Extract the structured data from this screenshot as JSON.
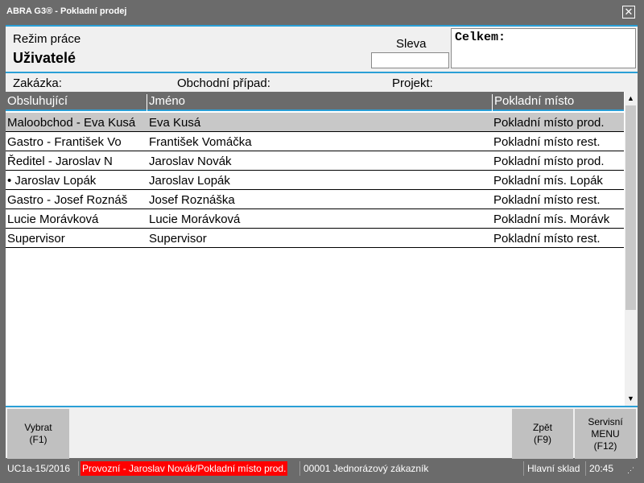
{
  "window": {
    "title": "ABRA G3® - Pokladní prodej",
    "close_icon": "close-icon"
  },
  "top": {
    "mode_label": "Režim práce",
    "mode_value": "Uživatelé",
    "sleva_label": "Sleva",
    "sleva_value": "",
    "celkem_label": "Celkem:"
  },
  "context": {
    "zakazka": "Zakázka:",
    "obchodni_pripad": "Obchodní případ:",
    "projekt": "Projekt:"
  },
  "table": {
    "columns": [
      "Obsluhující",
      "Jméno",
      "Pokladní místo"
    ],
    "rows": [
      [
        "Maloobchod - Eva Kusá",
        "Eva Kusá",
        "Pokladní místo prod."
      ],
      [
        "Gastro - František Vo",
        "František Vomáčka",
        "Pokladní místo rest."
      ],
      [
        "Ředitel - Jaroslav N",
        "Jaroslav Novák",
        "Pokladní místo prod."
      ],
      [
        "• Jaroslav Lopák",
        "Jaroslav Lopák",
        "Pokladní mís. Lopák"
      ],
      [
        "Gastro - Josef Roznáš",
        "Josef Roznáška",
        "Pokladní místo rest."
      ],
      [
        "Lucie Morávková",
        "Lucie Morávková",
        "Pokladní mís. Morávk"
      ],
      [
        "Supervisor",
        "Supervisor",
        "Pokladní místo rest."
      ]
    ],
    "selected_row": 0
  },
  "buttons": {
    "vybrat": [
      "Vybrat",
      "(F1)"
    ],
    "zpet": [
      "Zpět",
      "(F9)"
    ],
    "servis": [
      "Servisní",
      "MENU",
      "(F12)"
    ]
  },
  "status": {
    "version": "UC1a-15/2016",
    "mode": "Provozní - Jaroslav Novák/Pokladní místo prod.",
    "customer": "00001 Jednorázový zákazník",
    "warehouse": "Hlavní sklad",
    "time": "20:45",
    "mode_color": "#ff0000"
  }
}
